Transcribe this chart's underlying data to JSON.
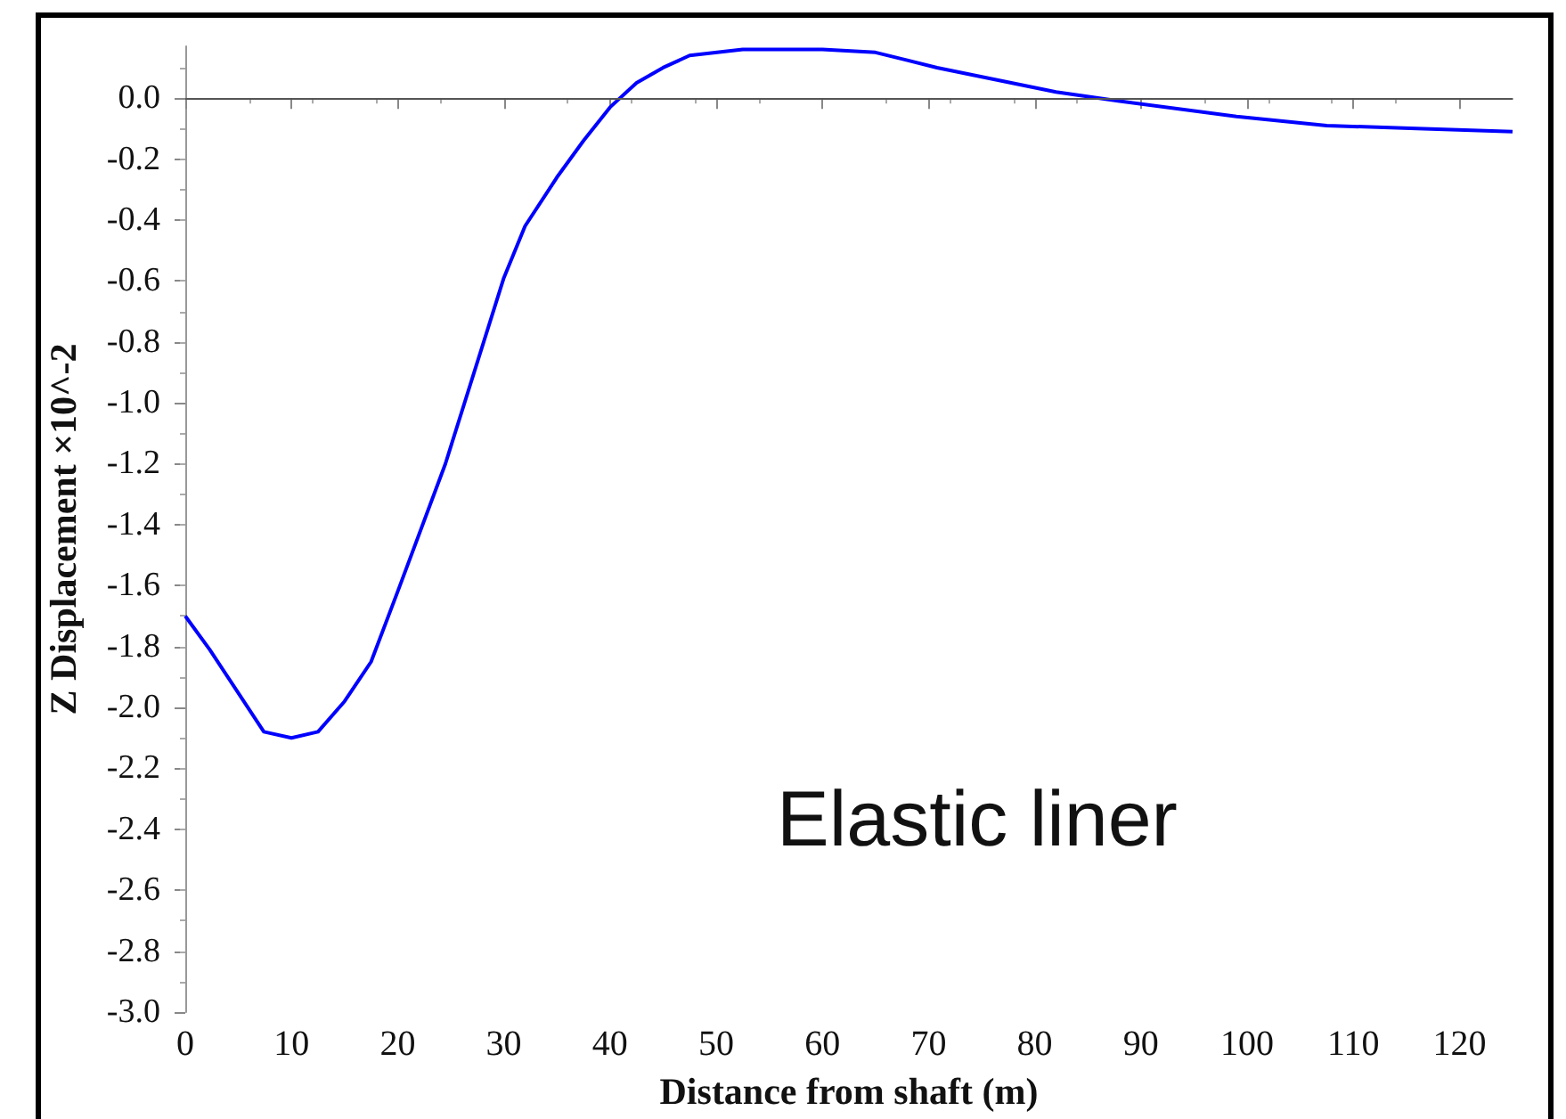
{
  "chart_data": {
    "type": "line",
    "xlabel": "Distance from shaft (m)",
    "ylabel": "Z Displacement ×10^-2",
    "annotations": [
      "Elastic liner"
    ],
    "x": [
      0,
      2.3,
      7.4,
      10,
      12.5,
      15,
      17.5,
      20,
      24.5,
      30,
      32,
      35,
      37.5,
      40,
      42.5,
      45,
      47.5,
      52.5,
      57.5,
      60,
      65,
      70.8,
      82,
      88,
      99,
      107.5,
      116,
      125
    ],
    "series": [
      {
        "color": "#0000ff",
        "values": [
          -1.7,
          -1.81,
          -2.08,
          -2.1,
          -2.08,
          -1.98,
          -1.85,
          -1.62,
          -1.2,
          -0.59,
          -0.42,
          -0.26,
          -0.14,
          -0.03,
          0.05,
          0.1,
          0.14,
          0.16,
          0.16,
          0.16,
          0.15,
          0.1,
          0.02,
          -0.01,
          -0.06,
          -0.09,
          -0.1,
          -0.11
        ]
      }
    ],
    "xlim": [
      0,
      125
    ],
    "xticks": [
      0,
      10,
      20,
      30,
      40,
      50,
      60,
      70,
      80,
      90,
      100,
      110,
      120
    ],
    "ylim": [
      -3.0,
      0.17
    ],
    "yticks": [
      {
        "value": -3.0,
        "label": "-3.0"
      },
      {
        "value": -2.8,
        "label": "-2.8"
      },
      {
        "value": -2.6,
        "label": "-2.6"
      },
      {
        "value": -2.4,
        "label": "-2.4"
      },
      {
        "value": -2.2,
        "label": "-2.2"
      },
      {
        "value": -2.0,
        "label": "-2.0"
      },
      {
        "value": -1.8,
        "label": "-1.8"
      },
      {
        "value": -1.6,
        "label": "-1.6"
      },
      {
        "value": -1.4,
        "label": "-1.4"
      },
      {
        "value": -1.2,
        "label": "-1.2"
      },
      {
        "value": -1.0,
        "label": "-1.0"
      },
      {
        "value": -0.8,
        "label": "-0.8"
      },
      {
        "value": -0.6,
        "label": "-0.6"
      },
      {
        "value": -0.4,
        "label": "-0.4"
      },
      {
        "value": -0.2,
        "label": "-0.2"
      },
      {
        "value": 0,
        "label": "0.0"
      }
    ],
    "ref_lines": [
      {
        "axis": "y",
        "value": 0,
        "color": "#555555"
      }
    ],
    "grid": false,
    "marker": "none",
    "line_style": "solid"
  }
}
